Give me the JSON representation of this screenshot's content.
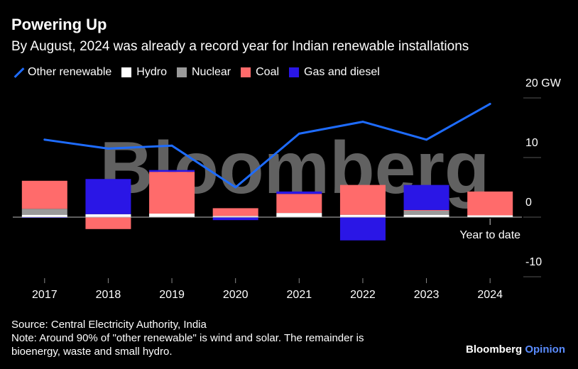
{
  "title": "Powering Up",
  "subtitle": "By August, 2024 was already a record year for Indian renewable installations",
  "source": "Source: Central Electricity Authority, India",
  "note_line1": "Note: Around 90% of \"other renewable\" is wind and solar. The remainder is",
  "note_line2": "bioenergy, waste and small hydro.",
  "brand": {
    "name": "Bloomberg",
    "suffix": "Opinion"
  },
  "watermark": "Bloomberg",
  "colors": {
    "other_renewable": "#1e6cff",
    "hydro": "#ffffff",
    "nuclear": "#9a9a9a",
    "coal": "#ff6b6b",
    "gas_diesel": "#2a16e6"
  },
  "chart_data": {
    "type": "bar",
    "categories": [
      "2017",
      "2018",
      "2019",
      "2020",
      "2021",
      "2022",
      "2023",
      "2024"
    ],
    "annotation": "Year to date",
    "y_tick_labels": [
      "20 GW",
      "10",
      "0",
      "-10"
    ],
    "y_ticks": [
      20,
      10,
      0,
      -10
    ],
    "ylim": [
      -12,
      21
    ],
    "series": [
      {
        "name": "Hydro",
        "kind": "bar",
        "values": [
          0.4,
          0.5,
          0.6,
          0.2,
          0.7,
          0.4,
          0.4,
          0.3
        ]
      },
      {
        "name": "Nuclear",
        "kind": "bar",
        "values": [
          1.0,
          0.0,
          0.0,
          0.0,
          0.0,
          0.0,
          0.7,
          0.0
        ]
      },
      {
        "name": "Coal",
        "kind": "bar",
        "values": [
          4.7,
          -2.0,
          7.0,
          1.3,
          3.2,
          5.0,
          0.1,
          4.0
        ]
      },
      {
        "name": "Gas and diesel",
        "kind": "bar",
        "values": [
          -0.1,
          5.9,
          0.3,
          -0.5,
          0.4,
          -3.9,
          4.2,
          0.0
        ]
      },
      {
        "name": "Other renewable",
        "kind": "line",
        "values": [
          13.0,
          11.5,
          12.0,
          5.0,
          14.0,
          16.0,
          13.0,
          19.0
        ]
      }
    ]
  }
}
